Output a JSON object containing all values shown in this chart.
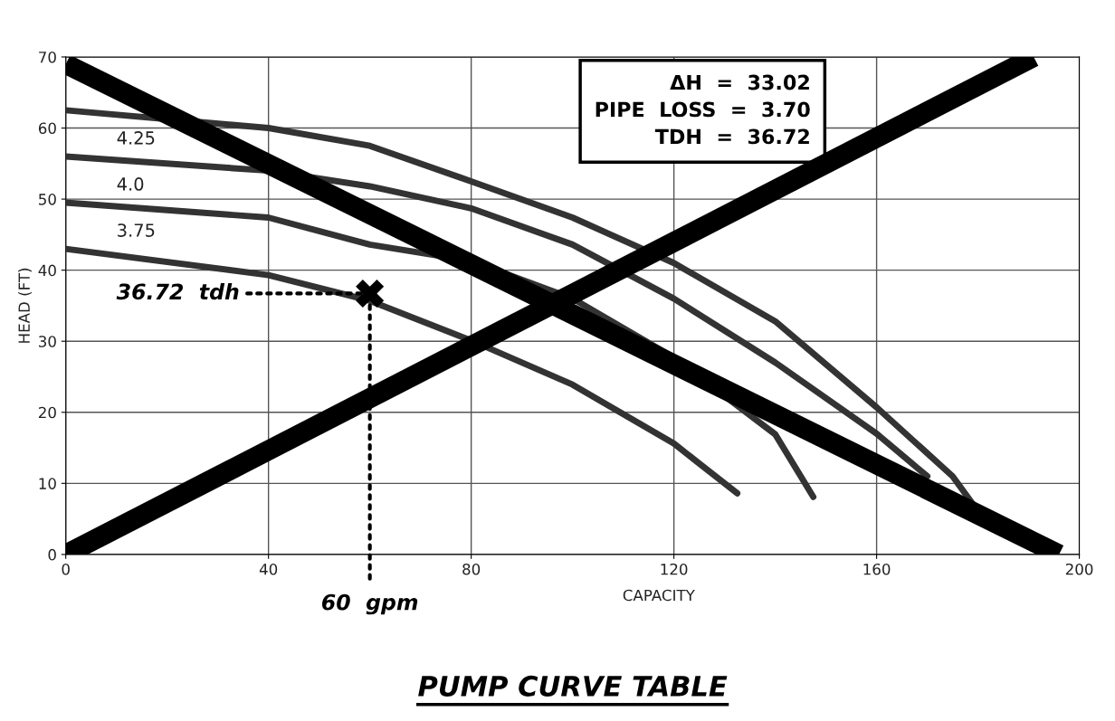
{
  "chart_data": {
    "type": "line",
    "title": "PUMP CURVE TABLE",
    "xlabel": "CAPACITY",
    "ylabel": "HEAD (FT)",
    "xlim": [
      0,
      200
    ],
    "xticks": [
      0,
      40,
      80,
      120,
      160,
      200
    ],
    "ylim": [
      0,
      70
    ],
    "yticks": [
      0,
      10,
      20,
      30,
      40,
      50,
      60,
      70
    ],
    "grid": true,
    "series": [
      {
        "color": "#333333",
        "x": [
          0,
          40,
          60,
          80,
          100,
          120,
          140,
          160,
          175,
          180
        ],
        "values": [
          62.5,
          60,
          57.5,
          52.5,
          47.4,
          41,
          32.8,
          20.7,
          11,
          6.1
        ]
      },
      {
        "name": "4.25",
        "color": "#333333",
        "x": [
          0,
          40,
          60,
          80,
          100,
          120,
          140,
          160,
          170
        ],
        "values": [
          56,
          54,
          51.8,
          48.7,
          43.6,
          36,
          27,
          17,
          11
        ]
      },
      {
        "name": "4.0",
        "color": "#333333",
        "x": [
          0,
          40,
          60,
          80,
          100,
          120,
          140,
          147.5
        ],
        "values": [
          49.5,
          47.4,
          43.6,
          41.3,
          36,
          27.7,
          16.9,
          8.1
        ]
      },
      {
        "name": "3.75",
        "color": "#333333",
        "x": [
          0,
          40,
          60,
          80,
          100,
          120,
          132.5
        ],
        "values": [
          43,
          39.3,
          35.7,
          30.1,
          23.9,
          15.6,
          8.6
        ]
      },
      {
        "type": "scatter",
        "marker": "cross",
        "color": "#000000",
        "x": [
          60
        ],
        "values": [
          36.72
        ]
      },
      {
        "color": "#000000",
        "x": [
          0,
          196
        ],
        "values": [
          69,
          0
        ]
      },
      {
        "color": "#000000",
        "x": [
          0,
          191
        ],
        "values": [
          0,
          70
        ]
      }
    ],
    "annotations": [
      "ΔH  =  33.02",
      "PIPE  LOSS  =  3.70",
      "TDH  =  36.72",
      {
        "text": "36.72  tdh",
        "x": 60,
        "y": 36.72
      },
      {
        "text": "60  gpm",
        "x": 60,
        "y": 36.72
      }
    ]
  }
}
